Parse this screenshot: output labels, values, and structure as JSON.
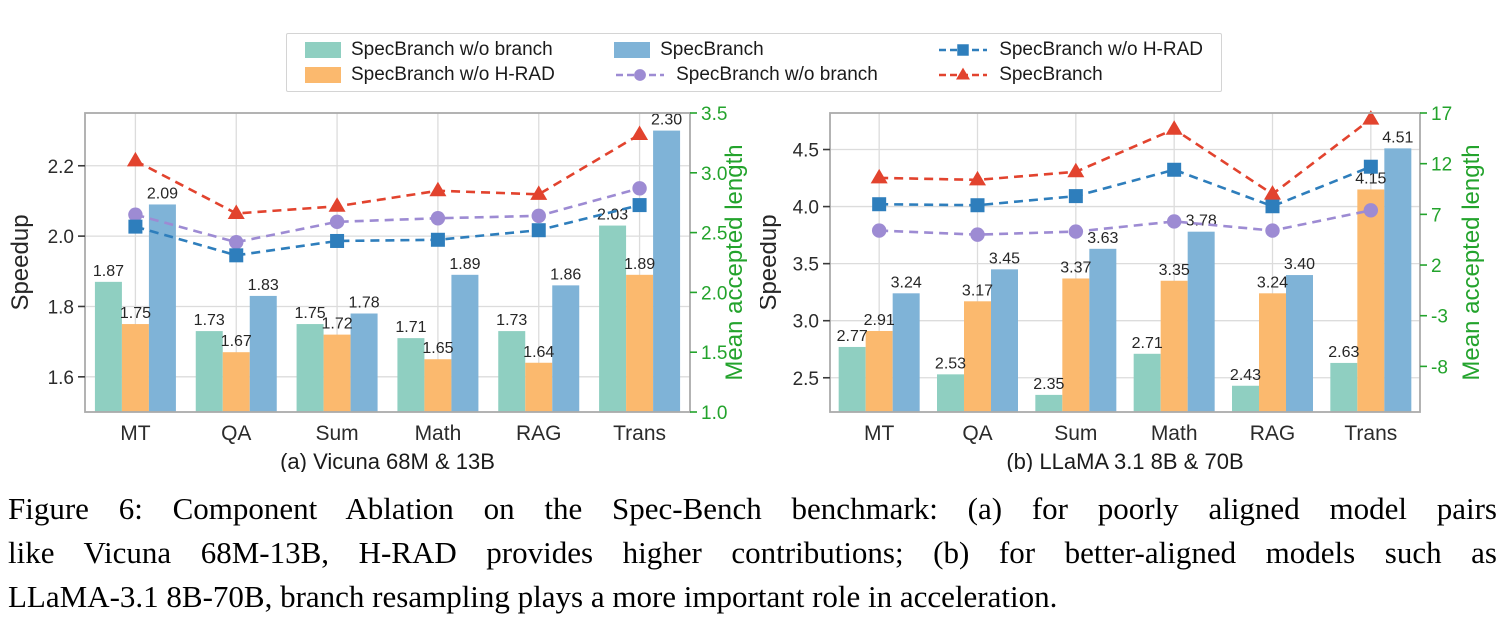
{
  "legend": {
    "items": [
      {
        "label": "SpecBranch w/o branch",
        "type": "bar",
        "color": "#8fcfc1"
      },
      {
        "label": "SpecBranch w/o H-RAD",
        "type": "bar",
        "color": "#fbb96e"
      },
      {
        "label": "SpecBranch",
        "type": "bar",
        "color": "#7fb3d7"
      },
      {
        "label": "SpecBranch w/o branch",
        "type": "line",
        "marker": "circle",
        "color": "#9d8bd3"
      },
      {
        "label": "SpecBranch w/o H-RAD",
        "type": "line",
        "marker": "square",
        "color": "#2e7ebc"
      },
      {
        "label": "SpecBranch",
        "type": "line",
        "marker": "triangle",
        "color": "#e2432e"
      }
    ]
  },
  "colors": {
    "teal_bar": "#8fcfc1",
    "orange_bar": "#fbb96e",
    "blue_bar": "#7fb3d7",
    "purple_line": "#9d8bd3",
    "blue_line": "#2e7ebc",
    "red_line": "#e2432e",
    "green_axis": "#23a32c",
    "grid": "#dcdcdc",
    "plot_border": "#ababab",
    "text": "#2b2b2b"
  },
  "chart_data": [
    {
      "id": "a",
      "type": "bar+line",
      "subtitle": "(a) Vicuna 68M & 13B",
      "ylabel_left": "Speedup",
      "ylabel_right": "Mean accepted length",
      "categories": [
        "MT",
        "QA",
        "Sum",
        "Math",
        "RAG",
        "Trans"
      ],
      "left_axis": {
        "min": 1.5,
        "max": 2.35,
        "ticks": [
          "1.6",
          "1.8",
          "2.0",
          "2.2"
        ]
      },
      "right_axis": {
        "min": 1.0,
        "max": 3.5,
        "ticks": [
          "1.0",
          "1.5",
          "2.0",
          "2.5",
          "3.0",
          "3.5"
        ],
        "color": "#23a32c"
      },
      "grid": true,
      "legend_position": "above-figure",
      "bar_series": [
        {
          "name": "SpecBranch w/o branch",
          "color": "#8fcfc1",
          "values": [
            1.87,
            1.73,
            1.75,
            1.71,
            1.73,
            2.03
          ]
        },
        {
          "name": "SpecBranch w/o H-RAD",
          "color": "#fbb96e",
          "values": [
            1.75,
            1.67,
            1.72,
            1.65,
            1.64,
            1.89
          ]
        },
        {
          "name": "SpecBranch",
          "color": "#7fb3d7",
          "values": [
            2.09,
            1.83,
            1.78,
            1.89,
            1.86,
            2.3
          ]
        }
      ],
      "line_series": [
        {
          "name": "SpecBranch w/o branch",
          "color": "#9d8bd3",
          "marker": "circle",
          "axis": "right",
          "values": [
            2.65,
            2.42,
            2.59,
            2.62,
            2.64,
            2.87
          ]
        },
        {
          "name": "SpecBranch w/o H-RAD",
          "color": "#2e7ebc",
          "marker": "square",
          "axis": "right",
          "values": [
            2.55,
            2.31,
            2.43,
            2.44,
            2.52,
            2.73
          ]
        },
        {
          "name": "SpecBranch",
          "color": "#e2432e",
          "marker": "triangle",
          "axis": "right",
          "values": [
            3.1,
            2.66,
            2.72,
            2.85,
            2.82,
            3.32
          ]
        }
      ]
    },
    {
      "id": "b",
      "type": "bar+line",
      "subtitle": "(b) LLaMA 3.1 8B & 70B",
      "ylabel_left": "Speedup",
      "ylabel_right": "Mean accepted length",
      "categories": [
        "MT",
        "QA",
        "Sum",
        "Math",
        "RAG",
        "Trans"
      ],
      "left_axis": {
        "min": 2.2,
        "max": 4.82,
        "ticks": [
          "2.5",
          "3.0",
          "3.5",
          "4.0",
          "4.5"
        ]
      },
      "right_axis": {
        "min": -12.5,
        "max": 17,
        "ticks": [
          "-8",
          "-3",
          "2",
          "7",
          "12",
          "17"
        ],
        "color": "#23a32c"
      },
      "grid": true,
      "legend_position": "above-figure",
      "bar_series": [
        {
          "name": "SpecBranch w/o branch",
          "color": "#8fcfc1",
          "values": [
            2.77,
            2.53,
            2.35,
            2.71,
            2.43,
            2.63
          ]
        },
        {
          "name": "SpecBranch w/o H-RAD",
          "color": "#fbb96e",
          "values": [
            2.91,
            3.17,
            3.37,
            3.35,
            3.24,
            4.15
          ]
        },
        {
          "name": "SpecBranch",
          "color": "#7fb3d7",
          "values": [
            3.24,
            3.45,
            3.63,
            3.78,
            3.4,
            4.51
          ]
        }
      ],
      "line_series": [
        {
          "name": "SpecBranch w/o branch",
          "color": "#9d8bd3",
          "marker": "circle",
          "axis": "right",
          "values": [
            5.4,
            5.0,
            5.3,
            6.3,
            5.4,
            7.4
          ]
        },
        {
          "name": "SpecBranch w/o H-RAD",
          "color": "#2e7ebc",
          "marker": "square",
          "axis": "right",
          "values": [
            8.0,
            7.9,
            8.8,
            11.4,
            7.8,
            11.7
          ]
        },
        {
          "name": "SpecBranch",
          "color": "#e2432e",
          "marker": "triangle",
          "axis": "right",
          "values": [
            10.6,
            10.4,
            11.2,
            15.4,
            9.0,
            16.4
          ]
        }
      ]
    }
  ],
  "caption": {
    "lines": [
      "Figure 6: Component Ablation on the Spec-Bench benchmark: (a) for poorly aligned model pairs",
      "like Vicuna 68M-13B, H-RAD provides higher contributions; (b) for better-aligned models such as",
      "LLaMA-3.1 8B-70B, branch resampling plays a more important role in acceleration."
    ]
  }
}
